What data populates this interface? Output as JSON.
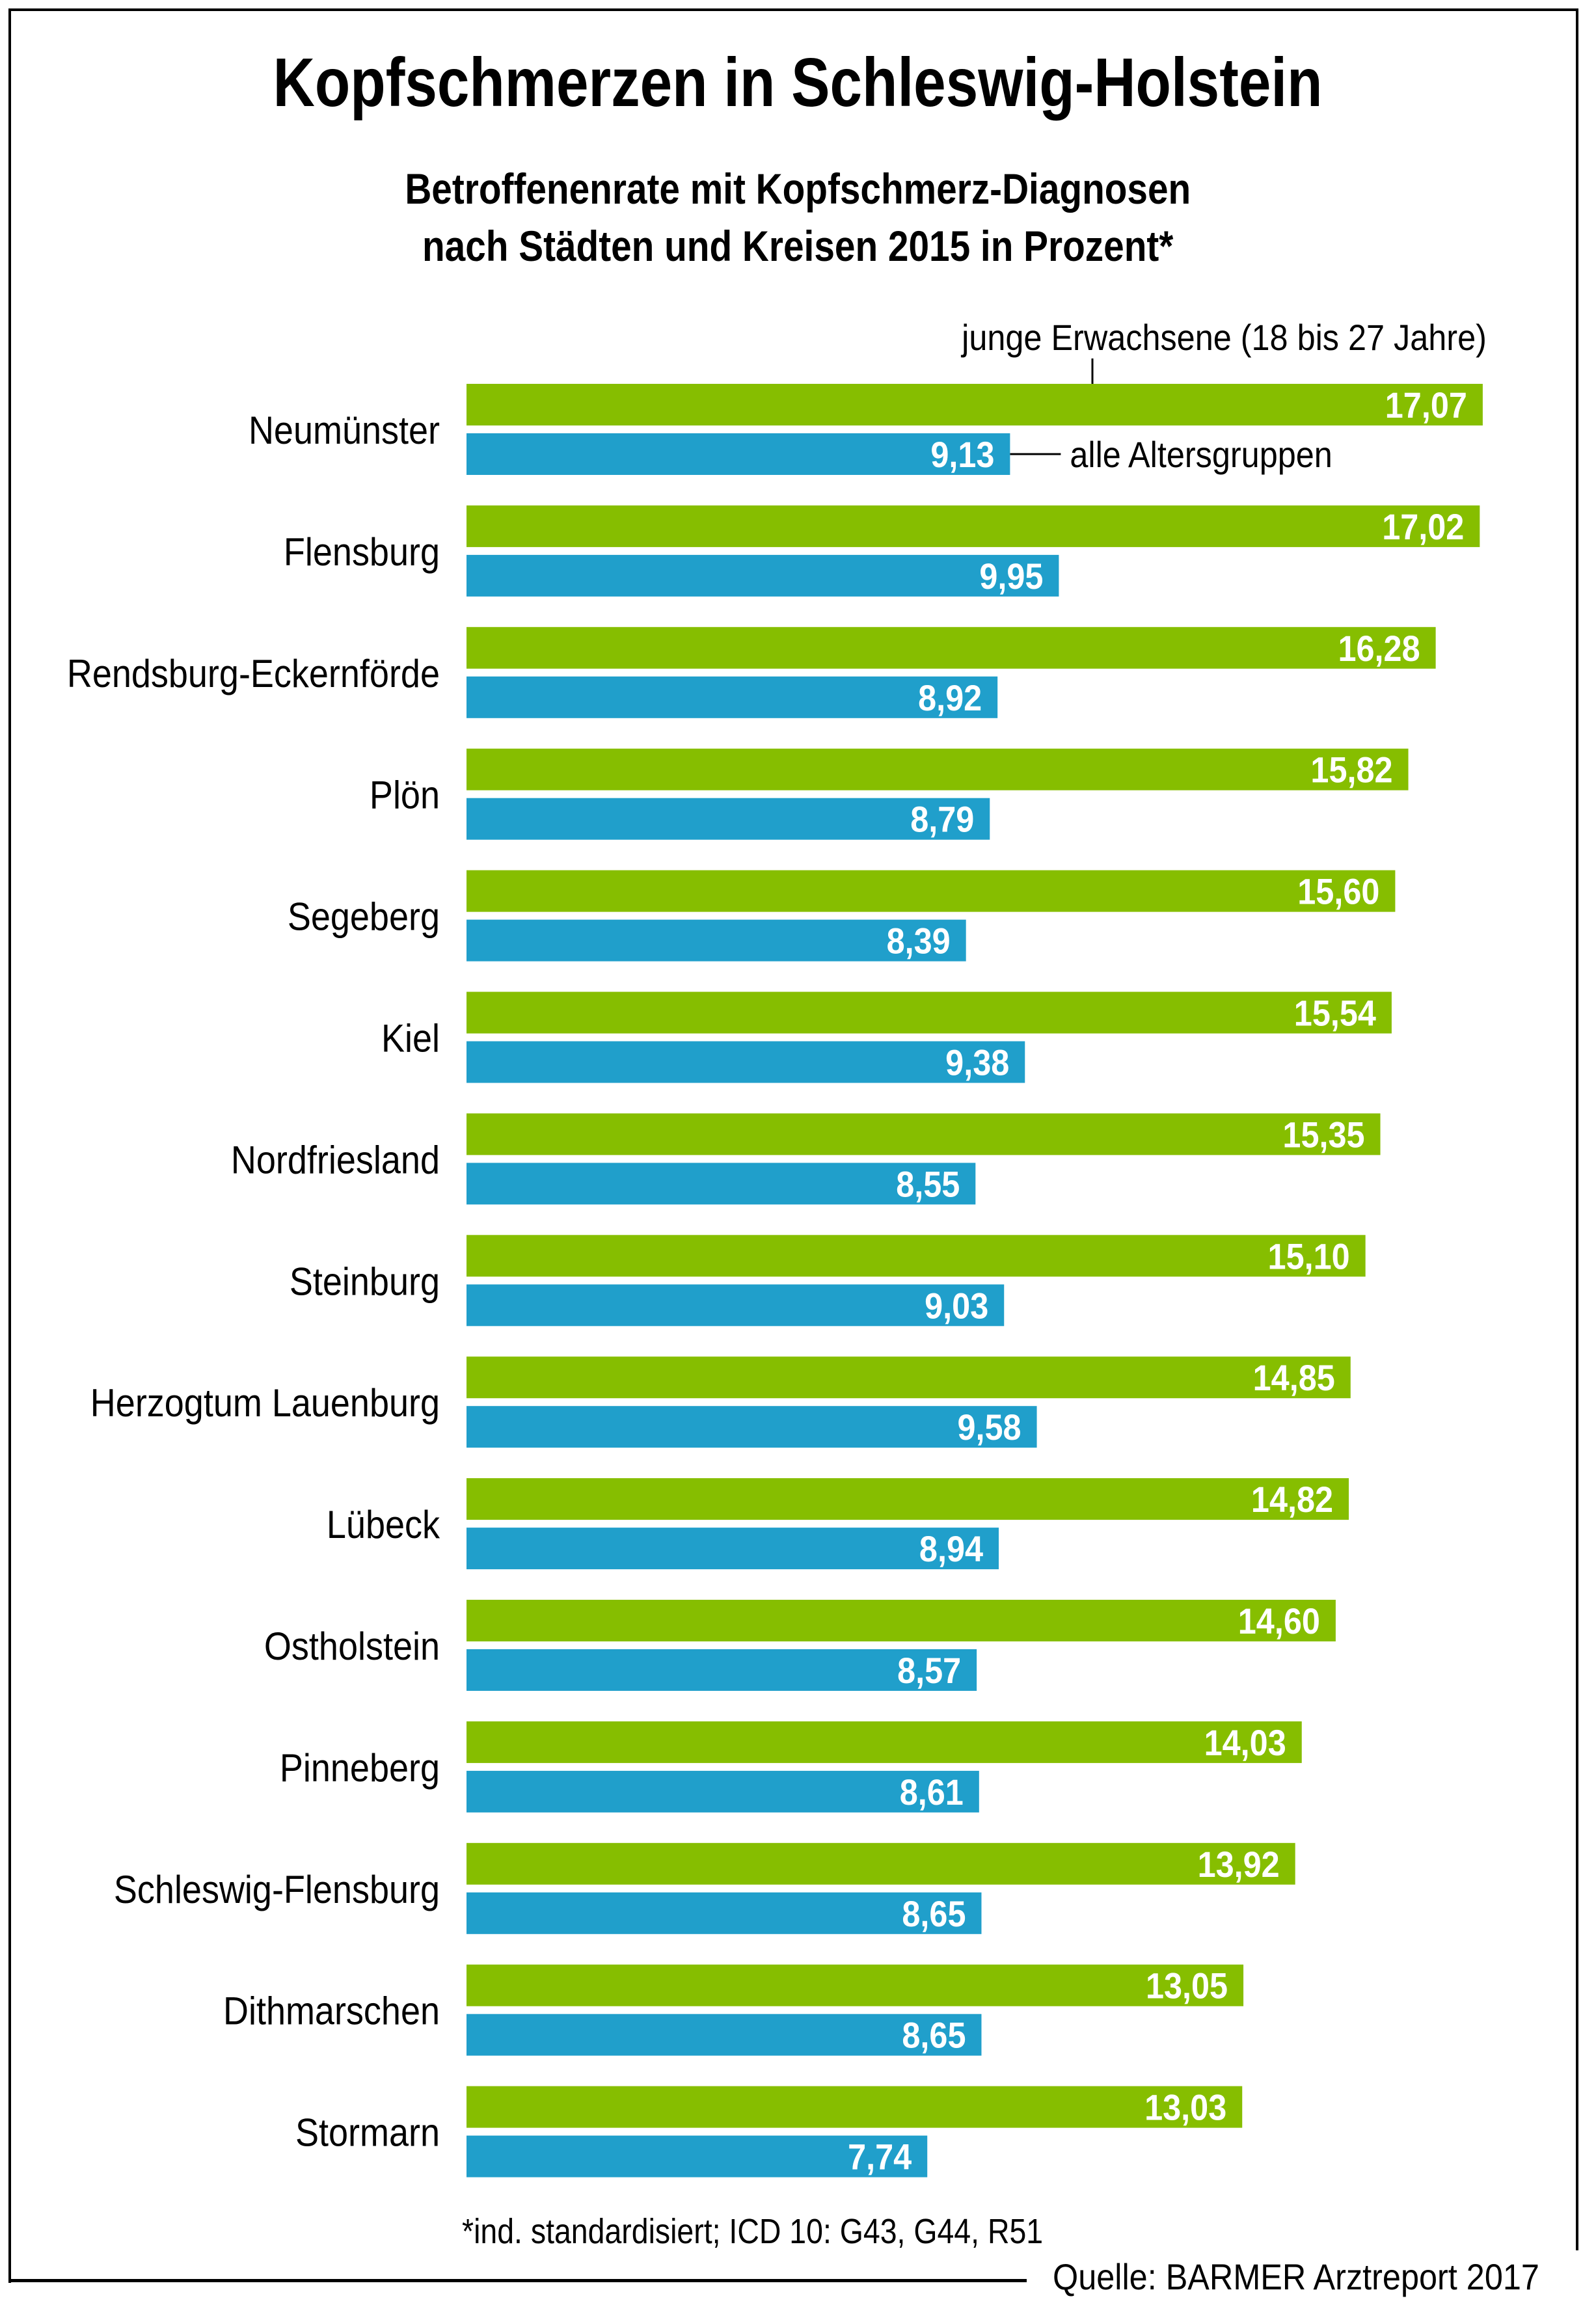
{
  "chart_data": {
    "type": "bar",
    "orientation": "horizontal",
    "title": "Kopfschmerzen in Schleswig-Holstein",
    "subtitle": [
      "Betroffenenrate mit Kopfschmerz-Diagnosen",
      "nach Städten und Kreisen 2015 in Prozent*"
    ],
    "xlabel": "",
    "ylabel": "",
    "xlim": [
      0,
      17.07
    ],
    "grid": false,
    "value_format": "comma-decimal-2",
    "categories": [
      "Neumünster",
      "Flensburg",
      "Rendsburg-Eckernförde",
      "Plön",
      "Segeberg",
      "Kiel",
      "Nordfriesland",
      "Steinburg",
      "Herzogtum Lauenburg",
      "Lübeck",
      "Ostholstein",
      "Pinneberg",
      "Schleswig-Flensburg",
      "Dithmarschen",
      "Stormarn"
    ],
    "series": [
      {
        "name": "junge Erwachsene (18 bis 27 Jahre)",
        "color": "#86BE00",
        "values": [
          17.07,
          17.02,
          16.28,
          15.82,
          15.6,
          15.54,
          15.35,
          15.1,
          14.85,
          14.82,
          14.6,
          14.03,
          13.92,
          13.05,
          13.03
        ],
        "labels": [
          "17,07",
          "17,02",
          "16,28",
          "15,82",
          "15,60",
          "15,54",
          "15,35",
          "15,10",
          "14,85",
          "14,82",
          "14,60",
          "14,03",
          "13,92",
          "13,05",
          "13,03"
        ]
      },
      {
        "name": "alle Altersgruppen",
        "color": "#209FCB",
        "values": [
          9.13,
          9.95,
          8.92,
          8.79,
          8.39,
          9.38,
          8.55,
          9.03,
          9.58,
          8.94,
          8.57,
          8.61,
          8.65,
          8.65,
          7.74
        ],
        "labels": [
          "9,13",
          "9,95",
          "8,92",
          "8,79",
          "8,39",
          "9,38",
          "8,55",
          "9,03",
          "9,58",
          "8,94",
          "8,57",
          "8,61",
          "8,65",
          "8,65",
          "7,74"
        ]
      }
    ],
    "legend": {
      "placement": "annotations-on-first-row",
      "entries": [
        "junge Erwachsene (18 bis 27 Jahre)",
        "alle Altersgruppen"
      ]
    },
    "footnote": "*ind. standardisiert; ICD 10: G43, G44, R51",
    "source": "Quelle: BARMER Arztreport 2017"
  },
  "header": {
    "title": "Kopfschmerzen in Schleswig-Holstein",
    "subtitle_line1": "Betroffenenrate mit Kopfschmerz-Diagnosen",
    "subtitle_line2": "nach Städten und Kreisen 2015 in Prozent*"
  },
  "footer": {
    "footnote": "*ind. standardisiert; ICD 10: G43, G44, R51",
    "source": "Quelle: BARMER Arztreport 2017"
  },
  "colors": {
    "young_adults": "#86BE00",
    "all_ages": "#209FCB",
    "value_label": "#FFFFFF",
    "text": "#000000"
  }
}
